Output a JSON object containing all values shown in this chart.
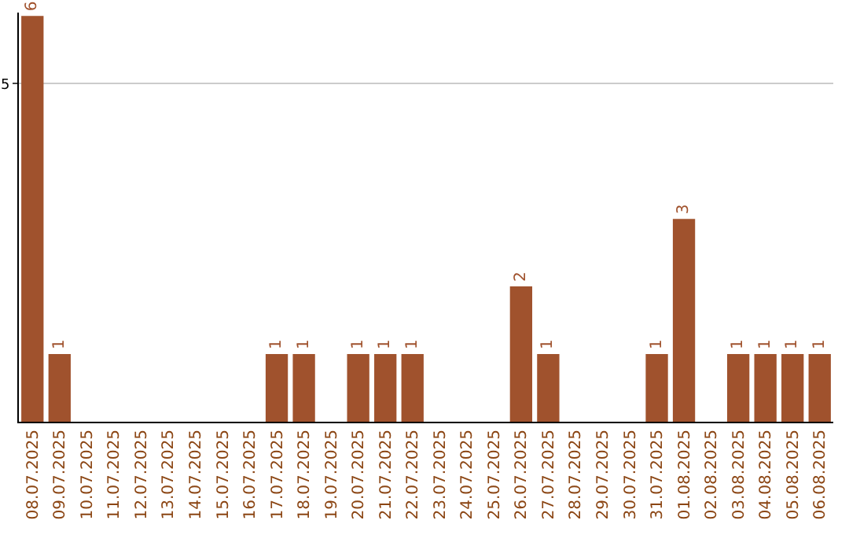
{
  "chart_data": {
    "type": "bar",
    "categories": [
      "08.07.2025",
      "09.07.2025",
      "10.07.2025",
      "11.07.2025",
      "12.07.2025",
      "13.07.2025",
      "14.07.2025",
      "15.07.2025",
      "16.07.2025",
      "17.07.2025",
      "18.07.2025",
      "19.07.2025",
      "20.07.2025",
      "21.07.2025",
      "22.07.2025",
      "23.07.2025",
      "24.07.2025",
      "25.07.2025",
      "26.07.2025",
      "27.07.2025",
      "28.07.2025",
      "29.07.2025",
      "30.07.2025",
      "31.07.2025",
      "01.08.2025",
      "02.08.2025",
      "03.08.2025",
      "04.08.2025",
      "05.08.2025",
      "06.08.2025"
    ],
    "values": [
      6,
      1,
      0,
      0,
      0,
      0,
      0,
      0,
      0,
      1,
      1,
      0,
      1,
      1,
      1,
      0,
      0,
      0,
      2,
      1,
      0,
      0,
      0,
      1,
      3,
      0,
      1,
      1,
      1,
      1
    ],
    "value_labels": [
      "6",
      "1",
      null,
      null,
      null,
      null,
      null,
      null,
      null,
      "1",
      "1",
      null,
      "1",
      "1",
      "1",
      null,
      null,
      null,
      "2",
      "1",
      null,
      null,
      null,
      "1",
      "3",
      null,
      "1",
      "1",
      "1",
      "1"
    ],
    "color": "#a0522d",
    "ylim": [
      0,
      6.05
    ],
    "yticks": [
      5
    ],
    "grid": "y"
  }
}
